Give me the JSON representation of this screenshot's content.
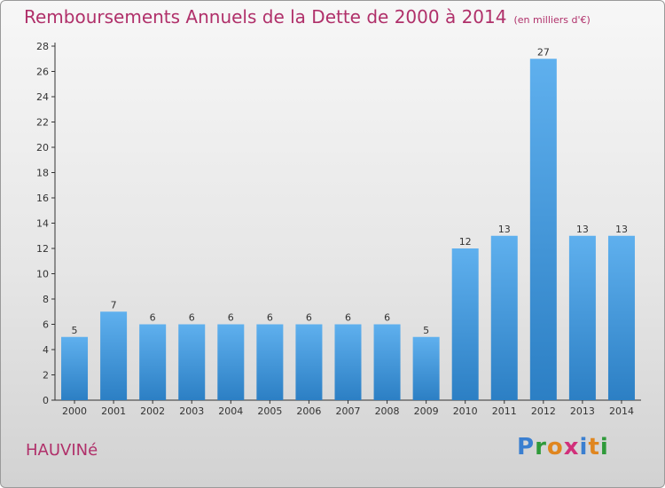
{
  "title": "Remboursements Annuels de la Dette de 2000 à 2014",
  "subtitle": "(en milliers d'€)",
  "commune": "HAUVINé",
  "logo": {
    "letters": [
      {
        "char": "P",
        "color": "#3a7fd0"
      },
      {
        "char": "r",
        "color": "#2f9a3a"
      },
      {
        "char": "o",
        "color": "#e0861f"
      },
      {
        "char": "x",
        "color": "#d1307a"
      },
      {
        "char": "i",
        "color": "#3a7fd0"
      },
      {
        "char": "t",
        "color": "#e0861f"
      },
      {
        "char": "i",
        "color": "#2f9a3a"
      }
    ]
  },
  "colors": {
    "bar_light": "#5fb0ee",
    "bar_dark": "#2c7fc4",
    "title": "#b0306a"
  },
  "chart_data": {
    "type": "bar",
    "categories": [
      "2000",
      "2001",
      "2002",
      "2003",
      "2004",
      "2005",
      "2006",
      "2007",
      "2008",
      "2009",
      "2010",
      "2011",
      "2012",
      "2013",
      "2014"
    ],
    "values": [
      5,
      7,
      6,
      6,
      6,
      6,
      6,
      6,
      6,
      5,
      12,
      13,
      27,
      13,
      13
    ],
    "ylim": [
      0,
      28
    ],
    "yticks": [
      0,
      2,
      4,
      6,
      8,
      10,
      12,
      14,
      16,
      18,
      20,
      22,
      24,
      26,
      28
    ],
    "grid": false,
    "xlabel": "",
    "ylabel": ""
  }
}
